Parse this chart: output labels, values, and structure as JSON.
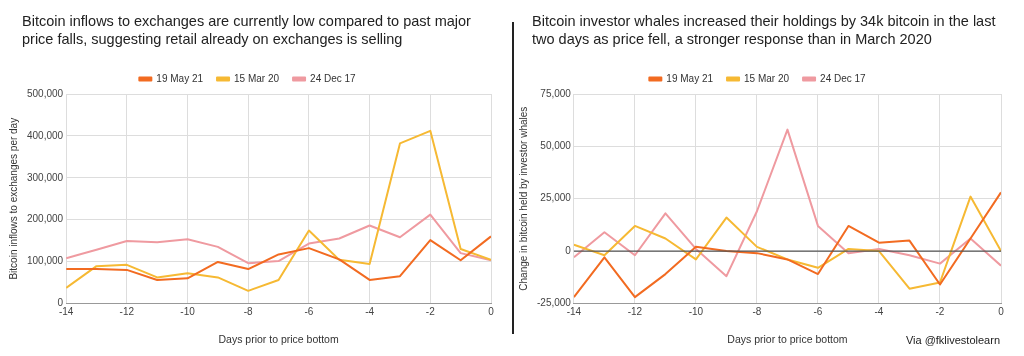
{
  "chart_data": [
    {
      "type": "line",
      "title": "Bitcoin inflows to exchanges are currently low compared to past major price falls, suggesting retail already on exchanges is selling",
      "xlabel": "Days prior to price bottom",
      "ylabel": "Bitcoin inflows to exchanges per day",
      "x": [
        -14,
        -13,
        -12,
        -11,
        -10,
        -9,
        -8,
        -7,
        -6,
        -5,
        -4,
        -3,
        -2,
        -1,
        0
      ],
      "series": [
        {
          "name": "19 May 21",
          "color": "#f26b21",
          "values": [
            82000,
            82000,
            80000,
            56000,
            60000,
            99000,
            82000,
            117000,
            132000,
            105000,
            56000,
            65000,
            151000,
            103000,
            160000
          ]
        },
        {
          "name": "15 Mar 20",
          "color": "#f6b933",
          "values": [
            37000,
            89000,
            92000,
            62000,
            72000,
            62000,
            30000,
            56000,
            174000,
            104000,
            94000,
            382000,
            412000,
            130000,
            104000
          ]
        },
        {
          "name": "24 Dec 17",
          "color": "#ef9aa0",
          "values": [
            108000,
            128000,
            149000,
            146000,
            153000,
            135000,
            96000,
            101000,
            143000,
            155000,
            186000,
            158000,
            212000,
            120000,
            103000
          ]
        }
      ],
      "xlim": [
        -14,
        0
      ],
      "xticks": [
        -14,
        -12,
        -10,
        -8,
        -6,
        -4,
        -2,
        0
      ],
      "ylim": [
        0,
        500000
      ],
      "yticks": [
        {
          "value": 0,
          "label": "0"
        },
        {
          "value": 100000,
          "label": "100,000"
        },
        {
          "value": 200000,
          "label": "200,000"
        },
        {
          "value": 300000,
          "label": "300,000"
        },
        {
          "value": 400000,
          "label": "400,000"
        },
        {
          "value": 500000,
          "label": "500,000"
        }
      ],
      "grid": true,
      "legend": "top",
      "marker": "none",
      "line_style": "solid"
    },
    {
      "type": "line",
      "title": "Bitcoin investor whales increased their holdings by 34k bitcoin in the last two days as price fell, a stronger response than in March 2020",
      "xlabel": "Days prior to price bottom",
      "ylabel": "Change in bitcoin held by investor whales",
      "x": [
        -14,
        -13,
        -12,
        -11,
        -10,
        -9,
        -8,
        -7,
        -6,
        -5,
        -4,
        -3,
        -2,
        -1,
        0
      ],
      "series": [
        {
          "name": "19 May 21",
          "color": "#f26b21",
          "values": [
            -22000,
            -3000,
            -22000,
            -11000,
            2000,
            0,
            -1000,
            -4000,
            -11000,
            12000,
            4000,
            5000,
            -16000,
            6000,
            28000
          ]
        },
        {
          "name": "15 Mar 20",
          "color": "#f6b933",
          "values": [
            3000,
            -2000,
            12000,
            6000,
            -4000,
            16000,
            2000,
            -4000,
            -8000,
            1000,
            0,
            -18000,
            -15000,
            26000,
            0
          ]
        },
        {
          "name": "24 Dec 17",
          "color": "#ef9aa0",
          "values": [
            -3000,
            9000,
            -2000,
            18000,
            1000,
            -12000,
            19000,
            58000,
            12000,
            -1000,
            1000,
            -2000,
            -6000,
            6000,
            -7000
          ]
        }
      ],
      "xlim": [
        -14,
        0
      ],
      "xticks": [
        -14,
        -12,
        -10,
        -8,
        -6,
        -4,
        -2,
        0
      ],
      "ylim": [
        -25000,
        75000
      ],
      "yticks": [
        {
          "value": -25000,
          "label": "-25,000"
        },
        {
          "value": 0,
          "label": "0"
        },
        {
          "value": 25000,
          "label": "25,000"
        },
        {
          "value": 50000,
          "label": "50,000"
        },
        {
          "value": 75000,
          "label": "75,000"
        }
      ],
      "ref_lines": [
        {
          "axis": "y",
          "value": 0,
          "color": "#555555"
        }
      ],
      "grid": true,
      "legend": "top",
      "marker": "none",
      "line_style": "solid",
      "annotations": [
        "Via @fklivestolearn"
      ]
    }
  ]
}
